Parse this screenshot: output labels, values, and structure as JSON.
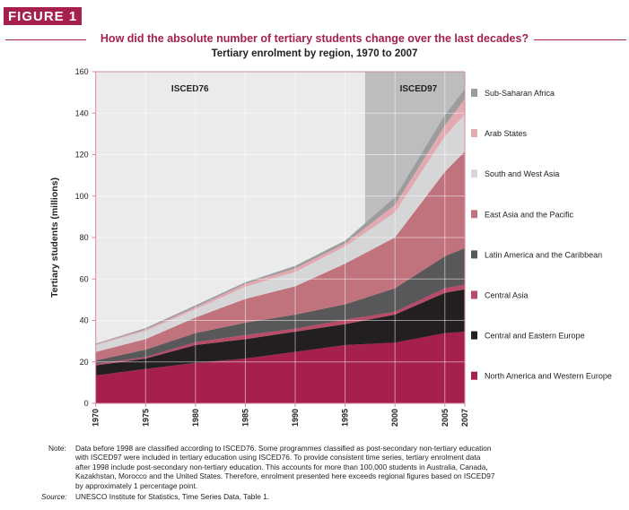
{
  "figure_label": "FIGURE 1",
  "question": "How did the absolute number of tertiary students change over the last decades?",
  "note_label": "Note:",
  "note": "Data before 1998 are classified according to ISCED76. Some programmes classified as post-secondary non-tertiary education with ISCED97 were included in tertiary education using ISCED76. To provide consistent time series, tertiary enrolment data after 1998 include post-secondary non-tertiary education. This accounts for more than 100,000 students in Australia, Canada, Kazakhstan, Morocco and the United States. Therefore, enrolment presented here exceeds regional figures based on ISCED97 by approximately 1 percentage point.",
  "source_label": "Source:",
  "source": "UNESCO Institute for Statistics, Time Series Data, Table 1.",
  "chart_data": {
    "type": "area",
    "stacked": true,
    "title": "Tertiary enrolment by region, 1970 to 2007",
    "xlabel": "",
    "ylabel": "Tertiary students (millions)",
    "xlim": [
      1970,
      2007
    ],
    "ylim": [
      0,
      160
    ],
    "grid": true,
    "legend_placement": "right",
    "x_ticks": [
      "1970",
      "1975",
      "1980",
      "1985",
      "1990",
      "1995",
      "2000",
      "2005",
      "2007"
    ],
    "y_ticks": [
      "0",
      "20",
      "40",
      "60",
      "80",
      "100",
      "120",
      "140",
      "160"
    ],
    "x": [
      1970,
      1975,
      1980,
      1985,
      1990,
      1995,
      2000,
      2005,
      2007
    ],
    "annotations": [
      {
        "text": "ISCED76",
        "period": [
          1970,
          1997
        ]
      },
      {
        "text": "ISCED97",
        "period": [
          1997,
          2007
        ]
      }
    ],
    "series": [
      {
        "name": "North America and Western Europe",
        "color": "#a51f4f",
        "values": [
          13.4,
          16.6,
          19.5,
          21.6,
          24.8,
          28.1,
          29.3,
          33.9,
          34.6
        ]
      },
      {
        "name": "Central and Eastern Europe",
        "color": "#231f20",
        "values": [
          4.9,
          5.0,
          8.6,
          9.4,
          9.8,
          10.1,
          13.5,
          19.4,
          20.4
        ]
      },
      {
        "name": "Central Asia",
        "color": "#b94a68",
        "values": [
          0.7,
          0.7,
          1.4,
          1.9,
          1.4,
          2.1,
          1.4,
          2.2,
          2.3
        ]
      },
      {
        "name": "Latin America and the Caribbean",
        "color": "#58585a",
        "values": [
          1.7,
          3.6,
          4.4,
          6.0,
          6.8,
          7.5,
          11.3,
          15.4,
          17.6
        ]
      },
      {
        "name": "East Asia and the Pacific",
        "color": "#c0737d",
        "values": [
          4.1,
          5.1,
          7.5,
          11.5,
          13.7,
          19.6,
          24.5,
          40.8,
          46.6
        ]
      },
      {
        "name": "South and West Asia",
        "color": "#d6d6d8",
        "values": [
          3.3,
          3.9,
          4.0,
          5.8,
          6.9,
          8.2,
          12.2,
          17.3,
          18.0
        ]
      },
      {
        "name": "Arab States",
        "color": "#e2aab0",
        "values": [
          0.4,
          0.7,
          1.0,
          1.4,
          1.7,
          1.5,
          3.6,
          5.0,
          7.5
        ]
      },
      {
        "name": "Sub-Saharan Africa",
        "color": "#9c9c9e",
        "values": [
          0.3,
          0.7,
          0.9,
          0.8,
          1.2,
          1.4,
          3.6,
          5.0,
          4.6
        ]
      }
    ]
  }
}
